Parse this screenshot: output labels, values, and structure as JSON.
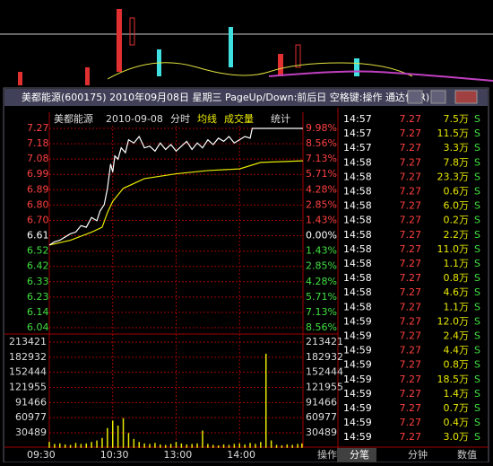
{
  "window": {
    "title": "美都能源(600175) 2010年09月08日 星期三 PageUp/Down:前后日 空格键:操作 通达信(R)"
  },
  "chart": {
    "name": "美都能源",
    "date": "2010-09-08",
    "mode": "分时",
    "avg_label": "均线",
    "vol_label": "成交量",
    "stats": "统计",
    "price_ticks": [
      "7.27",
      "7.18",
      "7.08",
      "6.99",
      "6.89",
      "6.80",
      "6.70",
      "6.61",
      "6.52",
      "6.42",
      "6.33",
      "6.23",
      "6.14",
      "6.04"
    ],
    "pct_ticks": [
      "9.98%",
      "8.56%",
      "7.13%",
      "5.71%",
      "4.28%",
      "2.85%",
      "1.43%",
      "0.00%",
      "1.43%",
      "2.85%",
      "4.28%",
      "5.71%",
      "7.13%",
      "8.56%"
    ],
    "vol_ticks": [
      213421,
      182932,
      152444,
      121955,
      91466,
      60977,
      30489
    ],
    "time_labels": [
      "09:30",
      "10:30",
      "13:00",
      "14:00"
    ],
    "price": {
      "minutes": [
        0,
        5,
        10,
        15,
        20,
        25,
        30,
        35,
        40,
        45,
        48,
        52,
        55,
        58,
        60,
        62,
        65,
        68,
        72,
        75,
        80,
        85,
        90,
        95,
        100,
        105,
        110,
        115,
        120,
        125,
        130,
        135,
        140,
        145,
        150,
        155,
        160,
        165,
        170,
        175,
        180,
        185,
        190,
        192,
        240
      ],
      "values": [
        6.55,
        6.57,
        6.58,
        6.6,
        6.62,
        6.63,
        6.67,
        6.66,
        6.72,
        6.7,
        6.76,
        6.8,
        6.9,
        7.05,
        7.0,
        7.1,
        7.08,
        7.15,
        7.12,
        7.2,
        7.18,
        7.22,
        7.15,
        7.16,
        7.13,
        7.18,
        7.14,
        7.17,
        7.13,
        7.16,
        7.19,
        7.14,
        7.18,
        7.15,
        7.2,
        7.17,
        7.21,
        7.19,
        7.22,
        7.18,
        7.2,
        7.22,
        7.21,
        7.27,
        7.27
      ]
    },
    "avg": {
      "minutes": [
        0,
        20,
        40,
        50,
        55,
        60,
        70,
        90,
        120,
        150,
        180,
        200,
        240
      ],
      "values": [
        6.55,
        6.58,
        6.63,
        6.66,
        6.75,
        6.82,
        6.9,
        6.96,
        6.99,
        7.01,
        7.02,
        7.06,
        7.07
      ]
    },
    "volume": {
      "minutes": [
        0,
        5,
        10,
        15,
        20,
        25,
        30,
        35,
        40,
        45,
        50,
        55,
        60,
        65,
        70,
        75,
        80,
        85,
        90,
        95,
        100,
        105,
        110,
        115,
        120,
        125,
        130,
        135,
        140,
        145,
        150,
        155,
        160,
        165,
        170,
        175,
        180,
        185,
        190,
        195,
        200,
        205,
        210,
        215,
        220,
        225,
        230,
        235,
        239
      ],
      "values": [
        12000,
        8000,
        9000,
        7000,
        6000,
        10000,
        8000,
        9000,
        12000,
        15000,
        20000,
        40000,
        55000,
        45000,
        60000,
        30000,
        18000,
        12000,
        9000,
        8000,
        10000,
        7000,
        6000,
        8000,
        12000,
        9000,
        7000,
        8000,
        9000,
        35000,
        8000,
        6000,
        5000,
        7000,
        6000,
        8000,
        9000,
        7000,
        10000,
        8000,
        12000,
        190000,
        15000,
        6000,
        5000,
        7000,
        6000,
        8000,
        9000
      ]
    }
  },
  "trades": [
    [
      "14:57",
      "7.27",
      "7.5万",
      "S"
    ],
    [
      "14:57",
      "7.27",
      "11.5万",
      "S"
    ],
    [
      "14:57",
      "7.27",
      "3.3万",
      "S"
    ],
    [
      "14:58",
      "7.27",
      "7.8万",
      "S"
    ],
    [
      "14:58",
      "7.27",
      "23.3万",
      "S"
    ],
    [
      "14:58",
      "7.27",
      "0.6万",
      "S"
    ],
    [
      "14:58",
      "7.27",
      "6.0万",
      "S"
    ],
    [
      "14:58",
      "7.27",
      "0.2万",
      "S"
    ],
    [
      "14:58",
      "7.27",
      "2.2万",
      "S"
    ],
    [
      "14:58",
      "7.27",
      "11.0万",
      "S"
    ],
    [
      "14:58",
      "7.27",
      "1.1万",
      "S"
    ],
    [
      "14:58",
      "7.27",
      "0.8万",
      "S"
    ],
    [
      "14:58",
      "7.27",
      "4.6万",
      "S"
    ],
    [
      "14:58",
      "7.27",
      "1.1万",
      "S"
    ],
    [
      "14:59",
      "7.27",
      "12.0万",
      "S"
    ],
    [
      "14:59",
      "7.27",
      "2.4万",
      "S"
    ],
    [
      "14:59",
      "7.27",
      "4.4万",
      "S"
    ],
    [
      "14:59",
      "7.27",
      "0.8万",
      "S"
    ],
    [
      "14:59",
      "7.27",
      "18.5万",
      "S"
    ],
    [
      "14:59",
      "7.27",
      "1.4万",
      "S"
    ],
    [
      "14:59",
      "7.27",
      "0.7万",
      "S"
    ],
    [
      "14:59",
      "7.27",
      "0.4万",
      "S"
    ],
    [
      "14:59",
      "7.27",
      "3.0万",
      "S"
    ]
  ],
  "tabs": [
    "操作",
    "分笔",
    "分钟",
    "数值"
  ]
}
